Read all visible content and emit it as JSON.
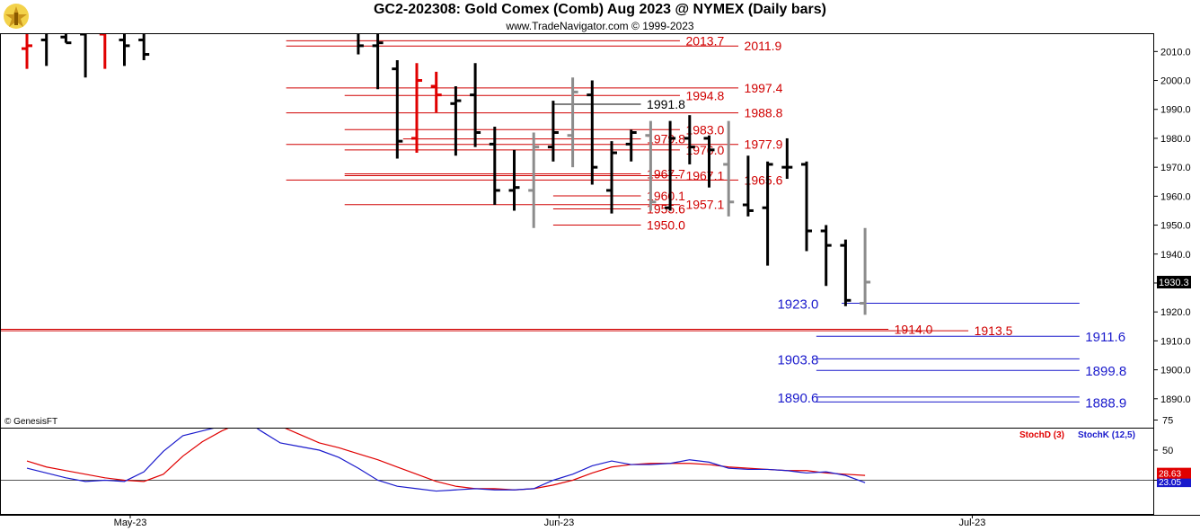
{
  "header": {
    "title": "GC2-202308:  Gold Comex (Comb) Aug 2023 @ NYMEX  (Daily bars)",
    "subtitle": "www.TradeNavigator.com © 1999-2023"
  },
  "watermark": "© GenesisFT",
  "colors": {
    "bar_black": "#000000",
    "bar_gray": "#8c8c8c",
    "bar_red": "#e00000",
    "level_red": "#d00000",
    "level_blue": "#1a1acc",
    "stoch_d": "#e00000",
    "stoch_k": "#1a1acc"
  },
  "chart_data": [
    {
      "type": "ohlc",
      "ylim": [
        1880,
        2016
      ],
      "y_ticks": [
        1890,
        1900,
        1910,
        1920,
        1930,
        1940,
        1950,
        1960,
        1970,
        1980,
        1990,
        2000,
        2010
      ],
      "y_tick_labels": [
        "1890.0",
        "1900.0",
        "1910.0",
        "1920.0",
        "1930.0",
        "1940.0",
        "1950.0",
        "1960.0",
        "1970.0",
        "1980.0",
        "1990.0",
        "2000.0",
        "2010.0"
      ],
      "x_labels": [
        {
          "label": "May-23",
          "bar": 5.3
        },
        {
          "label": "Jun-23",
          "bar": 27.3
        },
        {
          "label": "Jul-23",
          "bar": 48.5
        }
      ],
      "last_price": {
        "value": 1930.3,
        "label": "1930.3"
      },
      "bars": [
        {
          "i": 0,
          "o": 2011,
          "h": 2020,
          "l": 2004,
          "c": 2012,
          "color": "red"
        },
        {
          "i": 1,
          "o": 2014,
          "h": 2025,
          "l": 2005,
          "c": 2019,
          "color": "black"
        },
        {
          "i": 2,
          "o": 2015,
          "h": 2025,
          "l": 2013,
          "c": 2013,
          "color": "black"
        },
        {
          "i": 3,
          "o": 2016,
          "h": 2026,
          "l": 2001,
          "c": 2018,
          "color": "black"
        },
        {
          "i": 4,
          "o": 2016,
          "h": 2024,
          "l": 2004,
          "c": 2018,
          "color": "red"
        },
        {
          "i": 5,
          "o": 2014,
          "h": 2026,
          "l": 2005,
          "c": 2012,
          "color": "black"
        },
        {
          "i": 6,
          "o": 2014,
          "h": 2025,
          "l": 2007,
          "c": 2009,
          "color": "black"
        },
        {
          "i": 17,
          "o": 2019,
          "h": 2027,
          "l": 2009,
          "c": 2012,
          "color": "black"
        },
        {
          "i": 18,
          "o": 2012,
          "h": 2018,
          "l": 1997,
          "c": 2013,
          "color": "black"
        },
        {
          "i": 19,
          "o": 2004,
          "h": 2007,
          "l": 1973,
          "c": 1979,
          "color": "black"
        },
        {
          "i": 20,
          "o": 1980,
          "h": 2006,
          "l": 1975,
          "c": 2000,
          "color": "red"
        },
        {
          "i": 21,
          "o": 1998,
          "h": 2003,
          "l": 1989,
          "c": 1995,
          "color": "red"
        },
        {
          "i": 22,
          "o": 1992,
          "h": 1998,
          "l": 1974,
          "c": 1993,
          "color": "black"
        },
        {
          "i": 23,
          "o": 1995,
          "h": 2006,
          "l": 1977,
          "c": 1982,
          "color": "black"
        },
        {
          "i": 24,
          "o": 1978,
          "h": 1984,
          "l": 1957,
          "c": 1962,
          "color": "black"
        },
        {
          "i": 25,
          "o": 1962,
          "h": 1976,
          "l": 1955,
          "c": 1963,
          "color": "black"
        },
        {
          "i": 26,
          "o": 1962,
          "h": 1982,
          "l": 1949,
          "c": 1977,
          "color": "gray"
        },
        {
          "i": 27,
          "o": 1977,
          "h": 1993,
          "l": 1972,
          "c": 1982,
          "color": "black"
        },
        {
          "i": 28,
          "o": 1981,
          "h": 2001,
          "l": 1970,
          "c": 1996,
          "color": "gray"
        },
        {
          "i": 29,
          "o": 1995,
          "h": 2000,
          "l": 1964,
          "c": 1970,
          "color": "black"
        },
        {
          "i": 30,
          "o": 1962,
          "h": 1979,
          "l": 1954,
          "c": 1975,
          "color": "black"
        },
        {
          "i": 31,
          "o": 1978,
          "h": 1983,
          "l": 1972,
          "c": 1982,
          "color": "black"
        },
        {
          "i": 32,
          "o": 1981,
          "h": 1986,
          "l": 1955,
          "c": 1958,
          "color": "gray"
        },
        {
          "i": 33,
          "o": 1956,
          "h": 1986,
          "l": 1955,
          "c": 1980,
          "color": "black"
        },
        {
          "i": 34,
          "o": 1980,
          "h": 1988,
          "l": 1971,
          "c": 1977,
          "color": "black"
        },
        {
          "i": 35,
          "o": 1980,
          "h": 1981,
          "l": 1963,
          "c": 1976,
          "color": "black"
        },
        {
          "i": 36,
          "o": 1971,
          "h": 1986,
          "l": 1953,
          "c": 1958,
          "color": "gray"
        },
        {
          "i": 37,
          "o": 1957,
          "h": 1974,
          "l": 1953,
          "c": 1955,
          "color": "black"
        },
        {
          "i": 38,
          "o": 1956,
          "h": 1972,
          "l": 1936,
          "c": 1971,
          "color": "black"
        },
        {
          "i": 39,
          "o": 1970,
          "h": 1980,
          "l": 1966,
          "c": 1970,
          "color": "black"
        },
        {
          "i": 40,
          "o": 1971,
          "h": 1972,
          "l": 1941,
          "c": 1948,
          "color": "black"
        },
        {
          "i": 41,
          "o": 1948,
          "h": 1950,
          "l": 1929,
          "c": 1943,
          "color": "black"
        },
        {
          "i": 42,
          "o": 1943,
          "h": 1945,
          "l": 1922,
          "c": 1924,
          "color": "black"
        },
        {
          "i": 43,
          "o": 1923,
          "h": 1949,
          "l": 1919,
          "c": 1930.3,
          "color": "gray"
        }
      ],
      "levels": [
        {
          "value": 2013.7,
          "label": "2013.7",
          "color": "red",
          "x0": 13.3,
          "x1": 33.5,
          "label_bar": 33.8
        },
        {
          "value": 2011.9,
          "label": "2011.9",
          "color": "red",
          "x0": 13.3,
          "x1": 36.5,
          "label_bar": 36.8
        },
        {
          "value": 1997.4,
          "label": "1997.4",
          "color": "red",
          "x0": 13.3,
          "x1": 36.5,
          "label_bar": 36.8
        },
        {
          "value": 1994.8,
          "label": "1994.8",
          "color": "red",
          "x0": 16.3,
          "x1": 33.5,
          "label_bar": 33.8
        },
        {
          "value": 1991.8,
          "label": "1991.8",
          "color": "black",
          "x0": 27.0,
          "x1": 31.5,
          "label_bar": 31.8
        },
        {
          "value": 1988.8,
          "label": "1988.8",
          "color": "red",
          "x0": 13.3,
          "x1": 36.5,
          "label_bar": 36.8
        },
        {
          "value": 1983.0,
          "label": "1983.0",
          "color": "red",
          "x0": 16.3,
          "x1": 33.5,
          "label_bar": 33.8
        },
        {
          "value": 1979.8,
          "label": "1979.8",
          "color": "red",
          "x0": 19.3,
          "x1": 31.5,
          "label_bar": 31.8
        },
        {
          "value": 1977.9,
          "label": "1977.9",
          "color": "red",
          "x0": 13.3,
          "x1": 36.5,
          "label_bar": 36.8
        },
        {
          "value": 1976.0,
          "label": "1976.0",
          "color": "red",
          "x0": 16.3,
          "x1": 33.5,
          "label_bar": 33.8
        },
        {
          "value": 1967.7,
          "label": "1967.7",
          "color": "red",
          "x0": 16.3,
          "x1": 31.5,
          "label_bar": 31.8
        },
        {
          "value": 1967.1,
          "label": "1967.1",
          "color": "red",
          "x0": 16.3,
          "x1": 33.5,
          "label_bar": 33.8
        },
        {
          "value": 1965.6,
          "label": "1965.6",
          "color": "red",
          "x0": 13.3,
          "x1": 36.5,
          "label_bar": 36.8
        },
        {
          "value": 1960.1,
          "label": "1960.1",
          "color": "red",
          "x0": 27.0,
          "x1": 31.5,
          "label_bar": 31.8
        },
        {
          "value": 1957.1,
          "label": "1957.1",
          "color": "red",
          "x0": 16.3,
          "x1": 33.5,
          "label_bar": 33.8
        },
        {
          "value": 1955.6,
          "label": "1955.6",
          "color": "red",
          "x0": 27.0,
          "x1": 31.5,
          "label_bar": 31.8
        },
        {
          "value": 1950.0,
          "label": "1950.0",
          "color": "red",
          "x0": 27.0,
          "x1": 31.5,
          "label_bar": 31.8
        },
        {
          "value": 1923.0,
          "label": "1923.0",
          "color": "blue",
          "x0": 41.8,
          "x1": 54.0,
          "label_bar": 38.5
        },
        {
          "value": 1914.0,
          "label": "1914.0",
          "color": "red",
          "x0": -1,
          "x1": 44.2,
          "label_bar": 44.5
        },
        {
          "value": 1913.5,
          "label": "1913.5",
          "color": "red",
          "x0": -1,
          "x1": 48.3,
          "label_bar": 48.6
        },
        {
          "value": 1911.6,
          "label": "1911.6",
          "color": "blue",
          "x0": 40.5,
          "x1": 54.0,
          "label_bar": 54.3
        },
        {
          "value": 1903.8,
          "label": "1903.8",
          "color": "blue",
          "x0": 40.5,
          "x1": 54.0,
          "label_bar": 38.5
        },
        {
          "value": 1899.8,
          "label": "1899.8",
          "color": "blue",
          "x0": 40.5,
          "x1": 54.0,
          "label_bar": 54.3
        },
        {
          "value": 1890.6,
          "label": "1890.6",
          "color": "blue",
          "x0": 40.5,
          "x1": 54.0,
          "label_bar": 38.5
        },
        {
          "value": 1888.9,
          "label": "1888.9",
          "color": "blue",
          "x0": 40.5,
          "x1": 54.0,
          "label_bar": 54.3
        }
      ]
    },
    {
      "type": "line",
      "ylim": [
        0,
        100
      ],
      "y_ticks": [
        25,
        50,
        75
      ],
      "y_tick_labels": [
        "25",
        "50",
        "75"
      ],
      "reference_line": 25,
      "legend_position": "top-right",
      "series": [
        {
          "name": "StochD (3)",
          "color": "red",
          "last": 28.63,
          "last_label": "28.63",
          "values": [
            [
              0,
              41
            ],
            [
              1,
              36
            ],
            [
              2,
              33
            ],
            [
              3,
              30
            ],
            [
              4,
              27
            ],
            [
              5,
              25
            ],
            [
              6,
              24
            ],
            [
              7,
              30
            ],
            [
              8,
              45
            ],
            [
              9,
              57
            ],
            [
              10,
              66
            ],
            [
              11,
              73
            ],
            [
              12,
              74
            ],
            [
              13,
              70
            ],
            [
              14,
              63
            ],
            [
              15,
              56
            ],
            [
              16,
              52
            ],
            [
              17,
              47
            ],
            [
              18,
              42
            ],
            [
              19,
              36
            ],
            [
              20,
              30
            ],
            [
              21,
              24
            ],
            [
              22,
              20
            ],
            [
              23,
              18
            ],
            [
              24,
              18
            ],
            [
              25,
              17
            ],
            [
              26,
              18
            ],
            [
              27,
              21
            ],
            [
              28,
              25
            ],
            [
              29,
              31
            ],
            [
              30,
              36
            ],
            [
              31,
              38
            ],
            [
              32,
              39
            ],
            [
              33,
              39
            ],
            [
              34,
              39
            ],
            [
              35,
              38
            ],
            [
              36,
              36
            ],
            [
              37,
              35
            ],
            [
              38,
              34
            ],
            [
              39,
              33
            ],
            [
              40,
              33
            ],
            [
              41,
              31
            ],
            [
              42,
              30
            ],
            [
              43,
              29
            ]
          ]
        },
        {
          "name": "StochK (12,5)",
          "color": "blue",
          "last": 23.05,
          "last_label": "23.05",
          "values": [
            [
              0,
              35
            ],
            [
              1,
              31
            ],
            [
              2,
              27
            ],
            [
              3,
              24
            ],
            [
              4,
              25
            ],
            [
              5,
              24
            ],
            [
              6,
              32
            ],
            [
              7,
              49
            ],
            [
              8,
              62
            ],
            [
              9,
              66
            ],
            [
              10,
              70
            ],
            [
              11,
              77
            ],
            [
              12,
              66
            ],
            [
              13,
              56
            ],
            [
              14,
              53
            ],
            [
              15,
              50
            ],
            [
              16,
              44
            ],
            [
              17,
              35
            ],
            [
              18,
              25
            ],
            [
              19,
              20
            ],
            [
              20,
              18
            ],
            [
              21,
              16
            ],
            [
              22,
              17
            ],
            [
              23,
              18
            ],
            [
              24,
              17
            ],
            [
              25,
              17
            ],
            [
              26,
              18
            ],
            [
              27,
              25
            ],
            [
              28,
              30
            ],
            [
              29,
              37
            ],
            [
              30,
              41
            ],
            [
              31,
              38
            ],
            [
              32,
              38
            ],
            [
              33,
              39
            ],
            [
              34,
              42
            ],
            [
              35,
              40
            ],
            [
              36,
              35
            ],
            [
              37,
              34
            ],
            [
              38,
              34
            ],
            [
              39,
              33
            ],
            [
              40,
              31
            ],
            [
              41,
              32
            ],
            [
              42,
              29
            ],
            [
              43,
              23
            ]
          ]
        }
      ]
    }
  ]
}
